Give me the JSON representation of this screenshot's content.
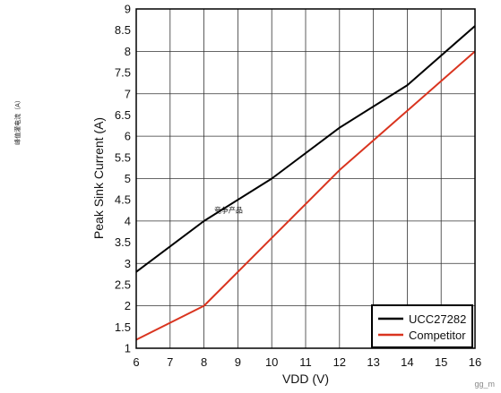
{
  "chart_data": {
    "type": "line",
    "title": "",
    "xlabel": "VDD (V)",
    "ylabel": "Peak Sink Current (A)",
    "xlim": [
      6,
      16
    ],
    "ylim": [
      1,
      9
    ],
    "x_ticks": [
      6,
      7,
      8,
      9,
      10,
      11,
      12,
      13,
      14,
      15,
      16
    ],
    "y_ticks": [
      1,
      1.5,
      2,
      2.5,
      3,
      3.5,
      4,
      4.5,
      5,
      5.5,
      6,
      6.5,
      7,
      7.5,
      8,
      8.5,
      9
    ],
    "grid": true,
    "legend_position": "bottom-right",
    "series": [
      {
        "name": "UCC27282",
        "color": "#000000",
        "x": [
          6,
          8,
          10,
          12,
          14,
          16
        ],
        "y": [
          2.8,
          4.0,
          5.0,
          6.2,
          7.2,
          8.6
        ]
      },
      {
        "name": "Competitor",
        "color": "#d9341f",
        "x": [
          6,
          8,
          10,
          12,
          14,
          16
        ],
        "y": [
          1.2,
          2.0,
          3.6,
          5.2,
          6.6,
          8.0
        ]
      }
    ],
    "annotations": [
      {
        "text": "竞争产品",
        "x": 8.3,
        "y": 4.2
      }
    ]
  },
  "side_note": "峰值灌电流（A）",
  "watermark": "gg_m"
}
